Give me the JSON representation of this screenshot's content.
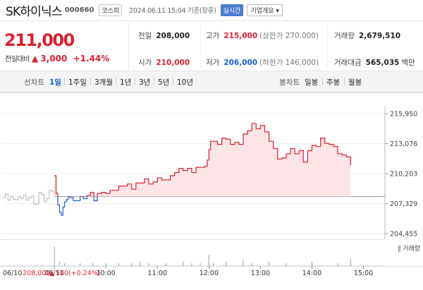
{
  "header": {
    "stock_name": "SK하이닉스",
    "stock_code": "000660",
    "market_tag": "코스피",
    "timestamp": "2024.06.11 15:04  기준(장중)",
    "live_button": "실시간",
    "company_button": "기업개요 ▾"
  },
  "price": {
    "current": "211,000",
    "change_label": "전일대비",
    "change_arrow": "▲",
    "change_amount": "3,000",
    "change_pct": "+1.44%"
  },
  "stats": {
    "prev_close": {
      "label": "전일",
      "value": "208,000"
    },
    "open": {
      "label": "시가",
      "value": "210,000"
    },
    "high": {
      "label": "고가",
      "value": "215,000",
      "sub": "(상한가 270,000)"
    },
    "low": {
      "label": "저가",
      "value": "206,000",
      "sub": "(하한가 146,000)"
    },
    "volume": {
      "label": "거래량",
      "value": "2,679,510"
    },
    "turnover": {
      "label": "거래대금",
      "value": "565,035",
      "unit": "백만"
    }
  },
  "tabs": {
    "line_chart": "선차트",
    "periods": [
      "1일",
      "1주일",
      "3개월",
      "1년",
      "3년",
      "5년",
      "10년"
    ],
    "selected_period": "1일",
    "candle_chart": "봉차트",
    "candle_periods": [
      "일봉",
      "주봉",
      "월봉"
    ]
  },
  "chart_data": {
    "type": "line",
    "y_ticks": [
      "215,950",
      "213,076",
      "210,203",
      "207,329",
      "204,455"
    ],
    "ylim": [
      204455,
      215950
    ],
    "x_ticks": [
      "06/11",
      "10:00",
      "11:00",
      "12:00",
      "13:00",
      "14:00",
      "15:00"
    ],
    "xlim_minutes": [
      -60,
      385
    ],
    "baseline": 208000,
    "volume_label": "거래량",
    "footer": {
      "date": "06/10",
      "price": "208,000",
      "arrow": "▲",
      "change": "500",
      "pct": "(+0.24%)"
    },
    "colors": {
      "up": "#d8222f",
      "down": "#1a5fd0",
      "prev": "#b3b3b3",
      "fill": "#fde4e6",
      "baseline": "#7f8f9a"
    },
    "previous_day": [
      [
        -60,
        207900
      ],
      [
        -57,
        208250
      ],
      [
        -54,
        207650
      ],
      [
        -51,
        208000
      ],
      [
        -48,
        207750
      ],
      [
        -45,
        207700
      ],
      [
        -42,
        208000
      ],
      [
        -39,
        207800
      ],
      [
        -36,
        208100
      ],
      [
        -33,
        207650
      ],
      [
        -30,
        207900
      ],
      [
        -27,
        208050
      ],
      [
        -24,
        207250
      ],
      [
        -21,
        207300
      ],
      [
        -18,
        208400
      ],
      [
        -15,
        208200
      ],
      [
        -12,
        207550
      ],
      [
        -9,
        207800
      ],
      [
        -6,
        208600
      ],
      [
        -3,
        208500
      ],
      [
        0,
        208000
      ]
    ],
    "today": [
      [
        0,
        210000
      ],
      [
        2,
        208300
      ],
      [
        4,
        207200
      ],
      [
        6,
        206500
      ],
      [
        8,
        206200
      ],
      [
        10,
        207000
      ],
      [
        12,
        207500
      ],
      [
        14,
        207700
      ],
      [
        16,
        208000
      ],
      [
        18,
        207900
      ],
      [
        22,
        207600
      ],
      [
        26,
        207600
      ],
      [
        30,
        208000
      ],
      [
        34,
        207800
      ],
      [
        38,
        208100
      ],
      [
        42,
        208400
      ],
      [
        46,
        207600
      ],
      [
        50,
        208300
      ],
      [
        55,
        208400
      ],
      [
        60,
        208300
      ],
      [
        65,
        208600
      ],
      [
        70,
        208600
      ],
      [
        75,
        209000
      ],
      [
        80,
        209000
      ],
      [
        85,
        209200
      ],
      [
        90,
        208700
      ],
      [
        95,
        209300
      ],
      [
        100,
        209300
      ],
      [
        105,
        209700
      ],
      [
        110,
        209200
      ],
      [
        115,
        209400
      ],
      [
        120,
        209800
      ],
      [
        125,
        209600
      ],
      [
        130,
        209600
      ],
      [
        135,
        210000
      ],
      [
        140,
        210300
      ],
      [
        145,
        210700
      ],
      [
        150,
        210500
      ],
      [
        155,
        210700
      ],
      [
        160,
        210300
      ],
      [
        165,
        210800
      ],
      [
        170,
        210800
      ],
      [
        175,
        210900
      ],
      [
        178,
        211500
      ],
      [
        180,
        212500
      ],
      [
        182,
        213300
      ],
      [
        185,
        213300
      ],
      [
        190,
        213000
      ],
      [
        195,
        213600
      ],
      [
        200,
        213500
      ],
      [
        205,
        213000
      ],
      [
        210,
        213200
      ],
      [
        215,
        213000
      ],
      [
        220,
        214000
      ],
      [
        225,
        214300
      ],
      [
        230,
        215000
      ],
      [
        235,
        214500
      ],
      [
        240,
        214800
      ],
      [
        245,
        214200
      ],
      [
        250,
        213300
      ],
      [
        255,
        212600
      ],
      [
        260,
        211600
      ],
      [
        265,
        211700
      ],
      [
        270,
        212100
      ],
      [
        275,
        212600
      ],
      [
        280,
        212100
      ],
      [
        285,
        212400
      ],
      [
        290,
        211300
      ],
      [
        295,
        212400
      ],
      [
        300,
        212900
      ],
      [
        305,
        212800
      ],
      [
        310,
        213600
      ],
      [
        315,
        213100
      ],
      [
        320,
        213000
      ],
      [
        325,
        212800
      ],
      [
        330,
        212100
      ],
      [
        335,
        212000
      ],
      [
        340,
        211800
      ],
      [
        345,
        211000
      ]
    ],
    "volume_ticks": [
      [
        0,
        14
      ],
      [
        6,
        3
      ],
      [
        12,
        2
      ],
      [
        30,
        2
      ],
      [
        45,
        2
      ],
      [
        60,
        2
      ],
      [
        75,
        2
      ],
      [
        90,
        2
      ],
      [
        100,
        3
      ],
      [
        110,
        2
      ],
      [
        130,
        2
      ],
      [
        150,
        3
      ],
      [
        160,
        2
      ],
      [
        170,
        2
      ],
      [
        180,
        8
      ],
      [
        185,
        2
      ],
      [
        200,
        3
      ],
      [
        220,
        4
      ],
      [
        230,
        2
      ],
      [
        250,
        3
      ],
      [
        270,
        2
      ],
      [
        300,
        3
      ],
      [
        330,
        2
      ],
      [
        345,
        5
      ]
    ]
  }
}
